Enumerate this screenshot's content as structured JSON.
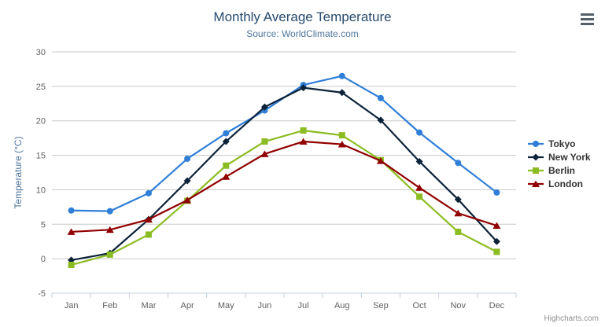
{
  "header": {
    "title": "Monthly Average Temperature",
    "subtitle": "Source: WorldClimate.com"
  },
  "chart_data": {
    "type": "line",
    "categories": [
      "Jan",
      "Feb",
      "Mar",
      "Apr",
      "May",
      "Jun",
      "Jul",
      "Aug",
      "Sep",
      "Oct",
      "Nov",
      "Dec"
    ],
    "series": [
      {
        "name": "Tokyo",
        "color": "#2f7ed8",
        "marker": "circle",
        "values": [
          7.0,
          6.9,
          9.5,
          14.5,
          18.2,
          21.5,
          25.2,
          26.5,
          23.3,
          18.3,
          13.9,
          9.6
        ]
      },
      {
        "name": "New York",
        "color": "#0d233a",
        "marker": "diamond",
        "values": [
          -0.2,
          0.8,
          5.7,
          11.3,
          17.0,
          22.0,
          24.8,
          24.1,
          20.1,
          14.1,
          8.6,
          2.5
        ]
      },
      {
        "name": "Berlin",
        "color": "#8bbc21",
        "marker": "square",
        "values": [
          -0.9,
          0.6,
          3.5,
          8.4,
          13.5,
          17.0,
          18.6,
          17.9,
          14.3,
          9.0,
          3.9,
          1.0
        ]
      },
      {
        "name": "London",
        "color": "#910000",
        "marker": "triangle",
        "values": [
          3.9,
          4.2,
          5.7,
          8.5,
          11.9,
          15.2,
          17.0,
          16.6,
          14.2,
          10.3,
          6.6,
          4.8
        ]
      }
    ],
    "title": "Monthly Average Temperature",
    "subtitle": "Source: WorldClimate.com",
    "xlabel": "",
    "ylabel": "Temperature (°C)",
    "ylim": [
      -5,
      30
    ],
    "yticks": [
      -5,
      0,
      5,
      10,
      15,
      20,
      25,
      30
    ],
    "grid": true,
    "legend_position": "right"
  },
  "credits": {
    "label": "Highcharts.com"
  },
  "icons": {
    "context_menu": "hamburger-menu-icon"
  },
  "colors": {
    "title": "#274b6d",
    "subtitle": "#4d759e",
    "axis_label": "#606060",
    "axis_line": "#c0d0e0",
    "gridline": "#c8c8c8",
    "yaxis_title": "#4d759e",
    "legend_text": "#333333",
    "credits": "#909090",
    "background": "#ffffff"
  }
}
